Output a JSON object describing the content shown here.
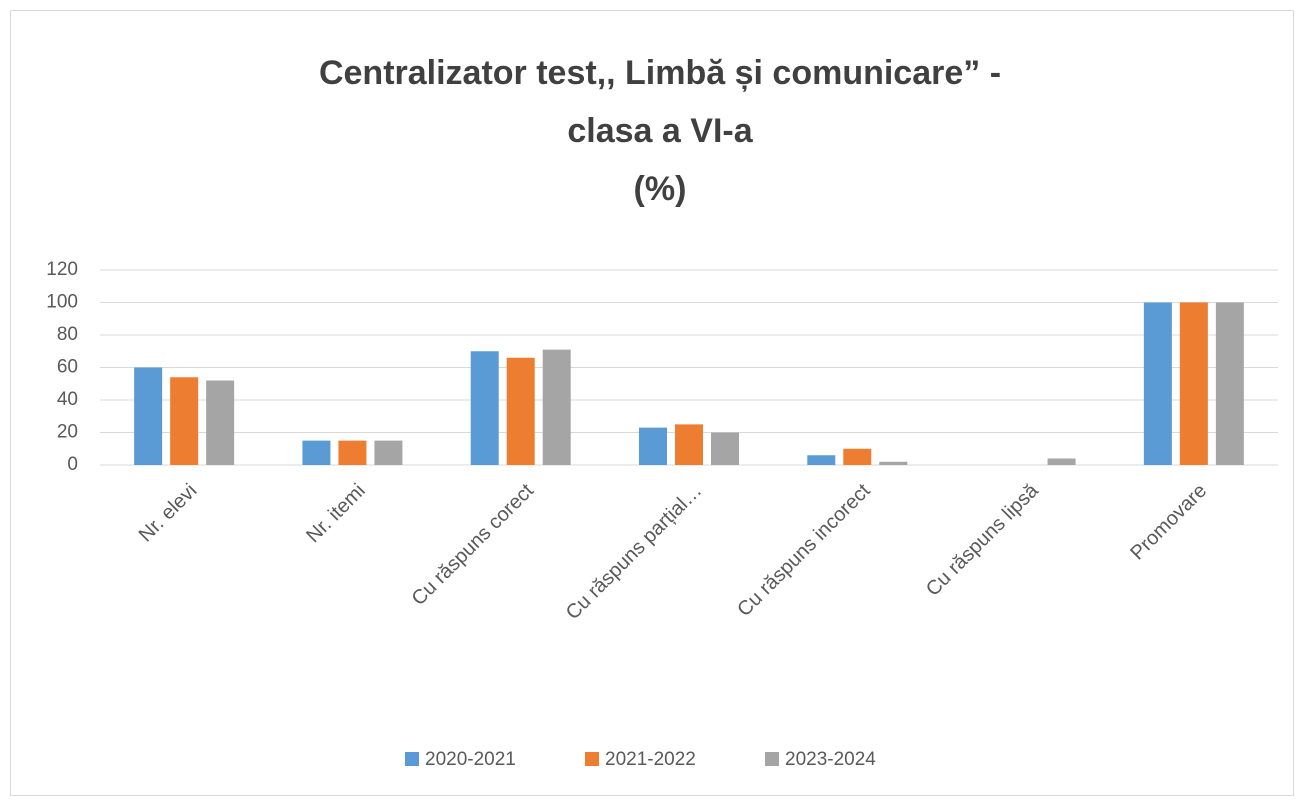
{
  "chart_data": {
    "type": "bar",
    "title": [
      "Centralizator test,, Limbă și comunicare” -",
      "clasa a VI-a",
      "(%)"
    ],
    "categories": [
      "Nr. elevi",
      "Nr. itemi",
      "Cu răspuns corect",
      "Cu răspuns parțial…",
      "Cu răspuns incorect",
      "Cu răspuns lipsă",
      "Promovare"
    ],
    "series": [
      {
        "name": "2020-2021",
        "color": "#5b9bd5",
        "values": [
          60,
          15,
          70,
          23,
          6,
          0,
          100
        ]
      },
      {
        "name": "2021-2022",
        "color": "#ed7d31",
        "values": [
          54,
          15,
          66,
          25,
          10,
          0,
          100
        ]
      },
      {
        "name": "2023-2024",
        "color": "#a5a5a5",
        "values": [
          52,
          15,
          71,
          20,
          2,
          4,
          100
        ]
      }
    ],
    "ylim": [
      0,
      120
    ],
    "yticks": [
      0,
      20,
      40,
      60,
      80,
      100,
      120
    ],
    "grid": true,
    "legend": "bottom"
  }
}
